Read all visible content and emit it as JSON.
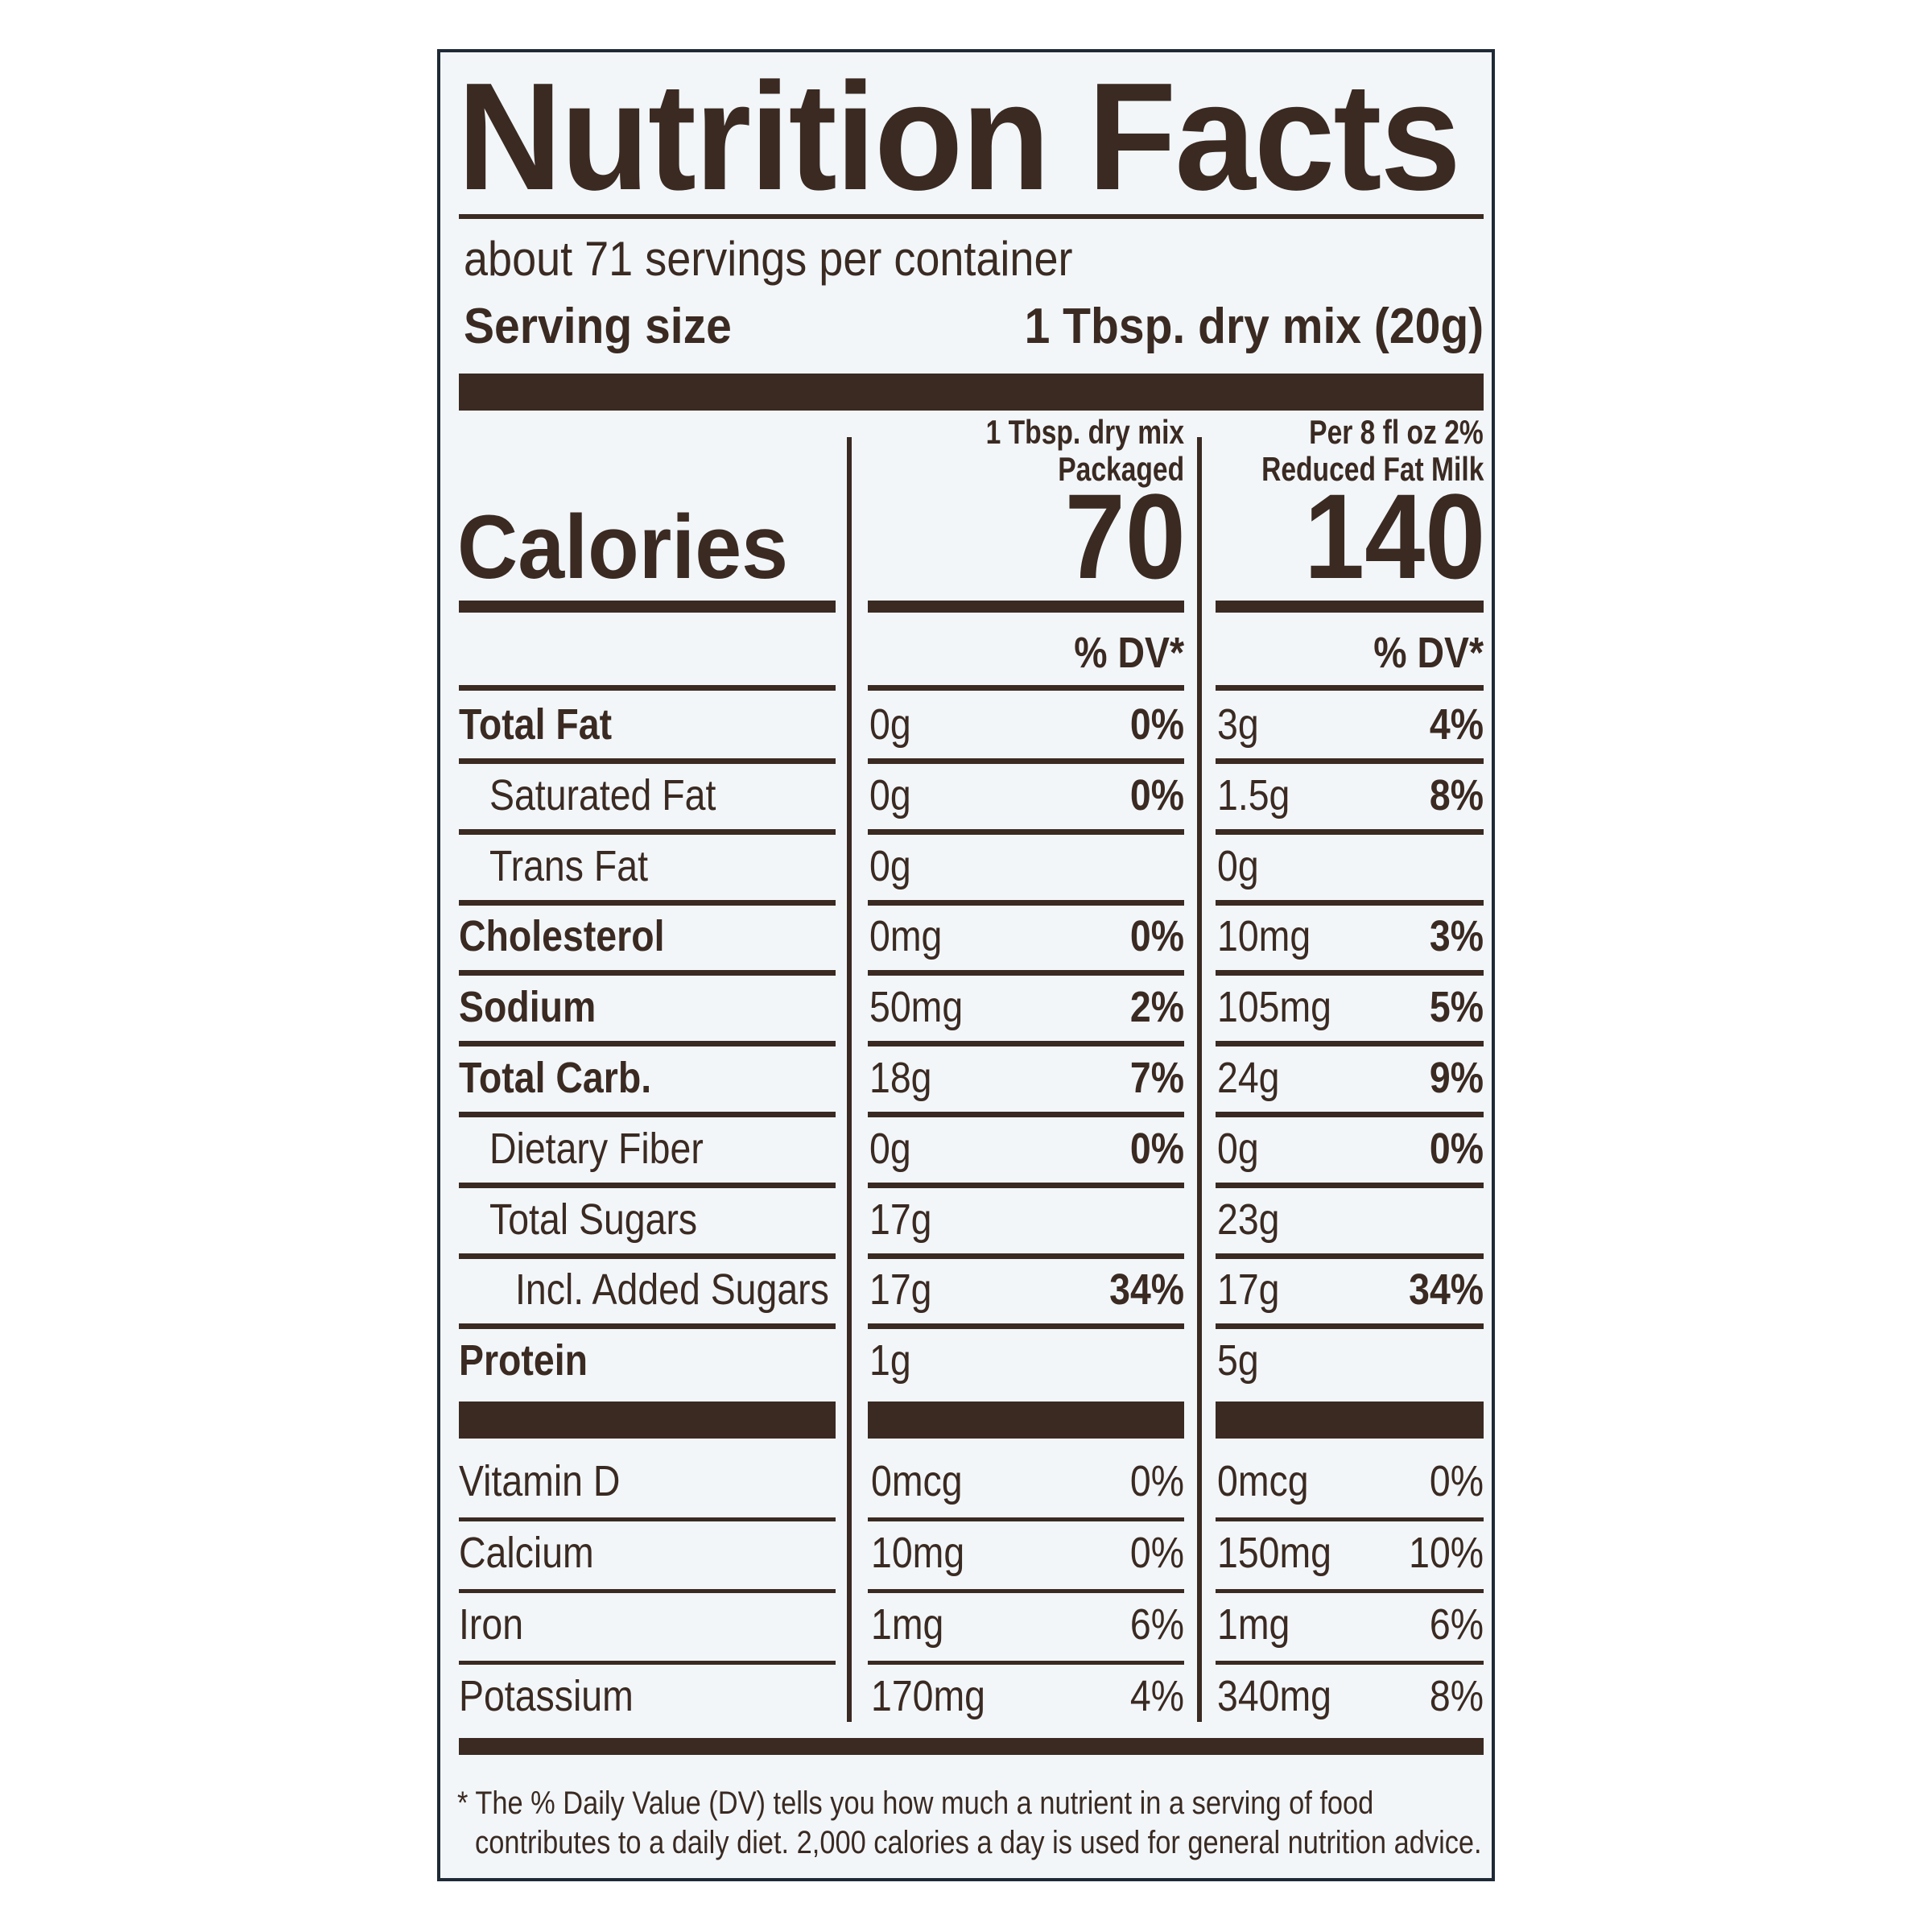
{
  "title": "Nutrition Facts",
  "servings_per_container": "about 71 servings per container",
  "serving_size": {
    "label": "Serving size",
    "value": "1 Tbsp. dry mix (20g)"
  },
  "columns": [
    {
      "header_line1": "1 Tbsp. dry mix",
      "header_line2": "Packaged",
      "calories": "70",
      "dv_header": "% DV*"
    },
    {
      "header_line1": "Per 8 fl oz 2%",
      "header_line2": "Reduced Fat Milk",
      "calories": "140",
      "dv_header": "% DV*"
    }
  ],
  "calories_label": "Calories",
  "nutrients": [
    {
      "label": "Total Fat",
      "bold": true,
      "indent": 0,
      "a1": "0g",
      "p1": "0%",
      "a2": "3g",
      "p2": "4%"
    },
    {
      "label": "Saturated Fat",
      "bold": false,
      "indent": 1,
      "a1": "0g",
      "p1": "0%",
      "a2": "1.5g",
      "p2": "8%"
    },
    {
      "label": "Trans Fat",
      "bold": false,
      "indent": 1,
      "a1": "0g",
      "p1": "",
      "a2": "0g",
      "p2": ""
    },
    {
      "label": "Cholesterol",
      "bold": true,
      "indent": 0,
      "a1": "0mg",
      "p1": "0%",
      "a2": "10mg",
      "p2": "3%"
    },
    {
      "label": "Sodium",
      "bold": true,
      "indent": 0,
      "a1": "50mg",
      "p1": "2%",
      "a2": "105mg",
      "p2": "5%"
    },
    {
      "label": "Total Carb.",
      "bold": true,
      "indent": 0,
      "a1": "18g",
      "p1": "7%",
      "a2": "24g",
      "p2": "9%"
    },
    {
      "label": "Dietary Fiber",
      "bold": false,
      "indent": 1,
      "a1": "0g",
      "p1": "0%",
      "a2": "0g",
      "p2": "0%"
    },
    {
      "label": "Total Sugars",
      "bold": false,
      "indent": 1,
      "a1": "17g",
      "p1": "",
      "a2": "23g",
      "p2": ""
    },
    {
      "label": "Incl. Added Sugars",
      "bold": false,
      "indent": 2,
      "a1": "17g",
      "p1": "34%",
      "a2": "17g",
      "p2": "34%"
    },
    {
      "label": "Protein",
      "bold": true,
      "indent": 0,
      "a1": "1g",
      "p1": "",
      "a2": "5g",
      "p2": ""
    }
  ],
  "vitamins": [
    {
      "label": "Vitamin D",
      "a1": "0mcg",
      "p1": "0%",
      "a2": "0mcg",
      "p2": "0%"
    },
    {
      "label": "Calcium",
      "a1": "10mg",
      "p1": "0%",
      "a2": "150mg",
      "p2": "10%"
    },
    {
      "label": "Iron",
      "a1": "1mg",
      "p1": "6%",
      "a2": "1mg",
      "p2": "6%"
    },
    {
      "label": "Potassium",
      "a1": "170mg",
      "p1": "4%",
      "a2": "340mg",
      "p2": "8%"
    }
  ],
  "footnote": {
    "line1": "* The % Daily Value (DV) tells you how much a nutrient in a serving of food",
    "line2": "contributes to a daily diet. 2,000 calories a day is used for general nutrition advice."
  }
}
